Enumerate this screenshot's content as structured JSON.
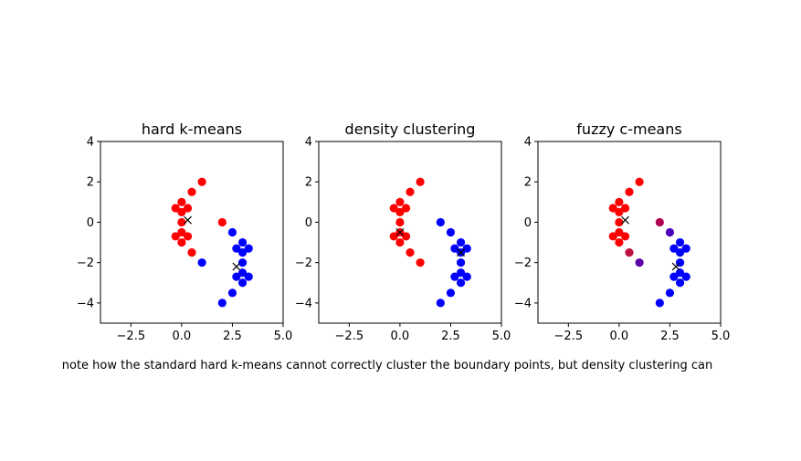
{
  "caption": "note how the standard hard k-means cannot correctly cluster the boundary points, but density clustering can",
  "chart_data": [
    {
      "type": "scatter",
      "title": "hard k-means",
      "xlim": [
        -4,
        5
      ],
      "ylim": [
        -5,
        4
      ],
      "xticks": [
        -2.5,
        0.0,
        2.5,
        5.0
      ],
      "xtick_labels": [
        "−2.5",
        "0.0",
        "2.5",
        "5.0"
      ],
      "yticks": [
        -4,
        -2,
        0,
        2,
        4
      ],
      "ytick_labels": [
        "−4",
        "−2",
        "0",
        "2",
        "4"
      ],
      "points": [
        {
          "x": 1.0,
          "y": 2.0,
          "color": "#ff0000"
        },
        {
          "x": 0.5,
          "y": 1.5,
          "color": "#ff0000"
        },
        {
          "x": 0.0,
          "y": 1.0,
          "color": "#ff0000"
        },
        {
          "x": -0.3,
          "y": 0.7,
          "color": "#ff0000"
        },
        {
          "x": 0.3,
          "y": 0.7,
          "color": "#ff0000"
        },
        {
          "x": 0.0,
          "y": 0.5,
          "color": "#ff0000"
        },
        {
          "x": 0.0,
          "y": 0.0,
          "color": "#ff0000"
        },
        {
          "x": 0.0,
          "y": -0.5,
          "color": "#ff0000"
        },
        {
          "x": -0.3,
          "y": -0.7,
          "color": "#ff0000"
        },
        {
          "x": 0.3,
          "y": -0.7,
          "color": "#ff0000"
        },
        {
          "x": 0.0,
          "y": -1.0,
          "color": "#ff0000"
        },
        {
          "x": 0.5,
          "y": -1.5,
          "color": "#ff0000"
        },
        {
          "x": 2.0,
          "y": 0.0,
          "color": "#ff0000"
        },
        {
          "x": 1.0,
          "y": -2.0,
          "color": "#0000ff"
        },
        {
          "x": 2.5,
          "y": -0.5,
          "color": "#0000ff"
        },
        {
          "x": 3.0,
          "y": -1.0,
          "color": "#0000ff"
        },
        {
          "x": 2.7,
          "y": -1.3,
          "color": "#0000ff"
        },
        {
          "x": 3.3,
          "y": -1.3,
          "color": "#0000ff"
        },
        {
          "x": 3.0,
          "y": -1.5,
          "color": "#0000ff"
        },
        {
          "x": 3.0,
          "y": -2.0,
          "color": "#0000ff"
        },
        {
          "x": 3.0,
          "y": -2.5,
          "color": "#0000ff"
        },
        {
          "x": 2.7,
          "y": -2.7,
          "color": "#0000ff"
        },
        {
          "x": 3.3,
          "y": -2.7,
          "color": "#0000ff"
        },
        {
          "x": 3.0,
          "y": -3.0,
          "color": "#0000ff"
        },
        {
          "x": 2.5,
          "y": -3.5,
          "color": "#0000ff"
        },
        {
          "x": 2.0,
          "y": -4.0,
          "color": "#0000ff"
        }
      ],
      "centers": [
        {
          "x": 0.3,
          "y": 0.1
        },
        {
          "x": 2.7,
          "y": -2.2
        }
      ]
    },
    {
      "type": "scatter",
      "title": "density clustering",
      "xlim": [
        -4,
        5
      ],
      "ylim": [
        -5,
        4
      ],
      "xticks": [
        -2.5,
        0.0,
        2.5,
        5.0
      ],
      "xtick_labels": [
        "−2.5",
        "0.0",
        "2.5",
        "5.0"
      ],
      "yticks": [
        -4,
        -2,
        0,
        2,
        4
      ],
      "ytick_labels": [
        "−4",
        "−2",
        "0",
        "2",
        "4"
      ],
      "points": [
        {
          "x": 1.0,
          "y": 2.0,
          "color": "#ff0000"
        },
        {
          "x": 0.5,
          "y": 1.5,
          "color": "#ff0000"
        },
        {
          "x": 0.0,
          "y": 1.0,
          "color": "#ff0000"
        },
        {
          "x": -0.3,
          "y": 0.7,
          "color": "#ff0000"
        },
        {
          "x": 0.3,
          "y": 0.7,
          "color": "#ff0000"
        },
        {
          "x": 0.0,
          "y": 0.5,
          "color": "#ff0000"
        },
        {
          "x": 0.0,
          "y": 0.0,
          "color": "#ff0000"
        },
        {
          "x": 0.0,
          "y": -0.5,
          "color": "#ff0000"
        },
        {
          "x": -0.3,
          "y": -0.7,
          "color": "#ff0000"
        },
        {
          "x": 0.3,
          "y": -0.7,
          "color": "#ff0000"
        },
        {
          "x": 0.0,
          "y": -1.0,
          "color": "#ff0000"
        },
        {
          "x": 0.5,
          "y": -1.5,
          "color": "#ff0000"
        },
        {
          "x": 1.0,
          "y": -2.0,
          "color": "#ff0000"
        },
        {
          "x": 2.0,
          "y": 0.0,
          "color": "#0000ff"
        },
        {
          "x": 2.5,
          "y": -0.5,
          "color": "#0000ff"
        },
        {
          "x": 3.0,
          "y": -1.0,
          "color": "#0000ff"
        },
        {
          "x": 2.7,
          "y": -1.3,
          "color": "#0000ff"
        },
        {
          "x": 3.3,
          "y": -1.3,
          "color": "#0000ff"
        },
        {
          "x": 3.0,
          "y": -1.5,
          "color": "#0000ff"
        },
        {
          "x": 3.0,
          "y": -2.0,
          "color": "#0000ff"
        },
        {
          "x": 3.0,
          "y": -2.5,
          "color": "#0000ff"
        },
        {
          "x": 2.7,
          "y": -2.7,
          "color": "#0000ff"
        },
        {
          "x": 3.3,
          "y": -2.7,
          "color": "#0000ff"
        },
        {
          "x": 3.0,
          "y": -3.0,
          "color": "#0000ff"
        },
        {
          "x": 2.5,
          "y": -3.5,
          "color": "#0000ff"
        },
        {
          "x": 2.0,
          "y": -4.0,
          "color": "#0000ff"
        }
      ],
      "centers": [
        {
          "x": 0.0,
          "y": -0.5
        },
        {
          "x": 3.0,
          "y": -1.5
        }
      ]
    },
    {
      "type": "scatter",
      "title": "fuzzy c-means",
      "xlim": [
        -4,
        5
      ],
      "ylim": [
        -5,
        4
      ],
      "xticks": [
        -2.5,
        0.0,
        2.5,
        5.0
      ],
      "xtick_labels": [
        "−2.5",
        "0.0",
        "2.5",
        "5.0"
      ],
      "yticks": [
        -4,
        -2,
        0,
        2,
        4
      ],
      "ytick_labels": [
        "−4",
        "−2",
        "0",
        "2",
        "4"
      ],
      "points": [
        {
          "x": 1.0,
          "y": 2.0,
          "color": "#ff0000"
        },
        {
          "x": 0.5,
          "y": 1.5,
          "color": "#ff0000"
        },
        {
          "x": 0.0,
          "y": 1.0,
          "color": "#ff0000"
        },
        {
          "x": -0.3,
          "y": 0.7,
          "color": "#ff0000"
        },
        {
          "x": 0.3,
          "y": 0.7,
          "color": "#ff0000"
        },
        {
          "x": 0.0,
          "y": 0.5,
          "color": "#ff0000"
        },
        {
          "x": 0.0,
          "y": 0.0,
          "color": "#ff0000"
        },
        {
          "x": 0.0,
          "y": -0.5,
          "color": "#ff0000"
        },
        {
          "x": -0.3,
          "y": -0.7,
          "color": "#ff0000"
        },
        {
          "x": 0.3,
          "y": -0.7,
          "color": "#ff0000"
        },
        {
          "x": 0.0,
          "y": -1.0,
          "color": "#ff0000"
        },
        {
          "x": 0.5,
          "y": -1.5,
          "color": "#c0103f"
        },
        {
          "x": 2.0,
          "y": 0.0,
          "color": "#b00050"
        },
        {
          "x": 1.0,
          "y": -2.0,
          "color": "#5a00a6"
        },
        {
          "x": 2.5,
          "y": -0.5,
          "color": "#4a00b8"
        },
        {
          "x": 3.0,
          "y": -1.0,
          "color": "#0000ff"
        },
        {
          "x": 2.7,
          "y": -1.3,
          "color": "#0000ff"
        },
        {
          "x": 3.3,
          "y": -1.3,
          "color": "#0000ff"
        },
        {
          "x": 3.0,
          "y": -1.5,
          "color": "#0000ff"
        },
        {
          "x": 3.0,
          "y": -2.0,
          "color": "#0000ff"
        },
        {
          "x": 3.0,
          "y": -2.5,
          "color": "#0000ff"
        },
        {
          "x": 2.7,
          "y": -2.7,
          "color": "#0000ff"
        },
        {
          "x": 3.3,
          "y": -2.7,
          "color": "#0000ff"
        },
        {
          "x": 3.0,
          "y": -3.0,
          "color": "#0000ff"
        },
        {
          "x": 2.5,
          "y": -3.5,
          "color": "#0000ff"
        },
        {
          "x": 2.0,
          "y": -4.0,
          "color": "#0000ff"
        }
      ],
      "centers": [
        {
          "x": 0.3,
          "y": 0.1
        },
        {
          "x": 2.8,
          "y": -2.2
        }
      ]
    }
  ]
}
